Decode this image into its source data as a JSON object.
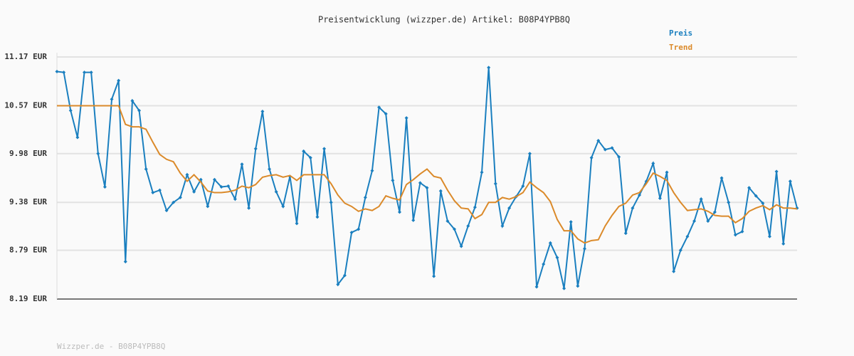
{
  "chart_data": {
    "type": "line",
    "title": "Preisentwicklung (wizzper.de) Artikel: B08P4YPB8Q",
    "footer": "Wizzper.de - B08P4YPB8Q",
    "ylim": [
      8.19,
      11.17
    ],
    "yticks": [
      {
        "value": 8.19,
        "label": "8.19 EUR"
      },
      {
        "value": 8.79,
        "label": "8.79 EUR"
      },
      {
        "value": 9.38,
        "label": "9.38 EUR"
      },
      {
        "value": 9.98,
        "label": "9.98 EUR"
      },
      {
        "value": 10.57,
        "label": "10.57 EUR"
      },
      {
        "value": 11.17,
        "label": "11.17 EUR"
      }
    ],
    "grid": true,
    "legend": "top-right",
    "series": [
      {
        "name": "Preis",
        "color": "#1a7fbf",
        "markers": true,
        "values": [
          10.99,
          10.98,
          10.51,
          10.18,
          10.98,
          10.98,
          9.98,
          9.57,
          10.65,
          10.88,
          8.65,
          10.63,
          10.51,
          9.79,
          9.5,
          9.53,
          9.28,
          9.38,
          9.44,
          9.72,
          9.51,
          9.66,
          9.33,
          9.66,
          9.57,
          9.58,
          9.42,
          9.85,
          9.31,
          10.04,
          10.5,
          9.79,
          9.51,
          9.33,
          9.7,
          9.12,
          10.01,
          9.93,
          9.2,
          10.04,
          9.38,
          8.37,
          8.48,
          9.01,
          9.05,
          9.44,
          9.77,
          10.55,
          10.47,
          9.65,
          9.26,
          10.42,
          9.16,
          9.62,
          9.56,
          8.47,
          9.52,
          9.15,
          9.05,
          8.84,
          9.09,
          9.32,
          9.75,
          11.04,
          9.61,
          9.09,
          9.31,
          9.45,
          9.58,
          9.98,
          8.34,
          8.62,
          8.88,
          8.7,
          8.32,
          9.14,
          8.35,
          8.81,
          9.93,
          10.14,
          10.03,
          10.05,
          9.94,
          9.0,
          9.31,
          9.47,
          9.64,
          9.86,
          9.43,
          9.75,
          8.53,
          8.79,
          8.96,
          9.15,
          9.42,
          9.15,
          9.26,
          9.68,
          9.38,
          8.98,
          9.02,
          9.56,
          9.46,
          9.37,
          8.96,
          9.76,
          8.87,
          9.64,
          9.31
        ]
      },
      {
        "name": "Trend",
        "color": "#db8a2a",
        "markers": false,
        "values": [
          10.57,
          10.57,
          10.57,
          10.57,
          10.57,
          10.57,
          10.57,
          10.57,
          10.57,
          10.57,
          10.34,
          10.31,
          10.31,
          10.28,
          10.12,
          9.97,
          9.91,
          9.88,
          9.74,
          9.64,
          9.72,
          9.63,
          9.52,
          9.5,
          9.5,
          9.51,
          9.53,
          9.58,
          9.56,
          9.6,
          9.69,
          9.71,
          9.72,
          9.69,
          9.71,
          9.65,
          9.72,
          9.72,
          9.72,
          9.72,
          9.61,
          9.47,
          9.37,
          9.33,
          9.27,
          9.3,
          9.28,
          9.33,
          9.46,
          9.43,
          9.41,
          9.6,
          9.66,
          9.73,
          9.79,
          9.7,
          9.68,
          9.53,
          9.4,
          9.31,
          9.3,
          9.18,
          9.23,
          9.38,
          9.38,
          9.44,
          9.42,
          9.45,
          9.5,
          9.63,
          9.56,
          9.5,
          9.39,
          9.17,
          9.03,
          9.03,
          8.93,
          8.88,
          8.91,
          8.92,
          9.09,
          9.22,
          9.33,
          9.37,
          9.47,
          9.5,
          9.61,
          9.74,
          9.7,
          9.65,
          9.5,
          9.38,
          9.28,
          9.29,
          9.3,
          9.27,
          9.22,
          9.21,
          9.21,
          9.13,
          9.18,
          9.27,
          9.31,
          9.34,
          9.29,
          9.35,
          9.31,
          9.31,
          9.3
        ]
      }
    ]
  }
}
